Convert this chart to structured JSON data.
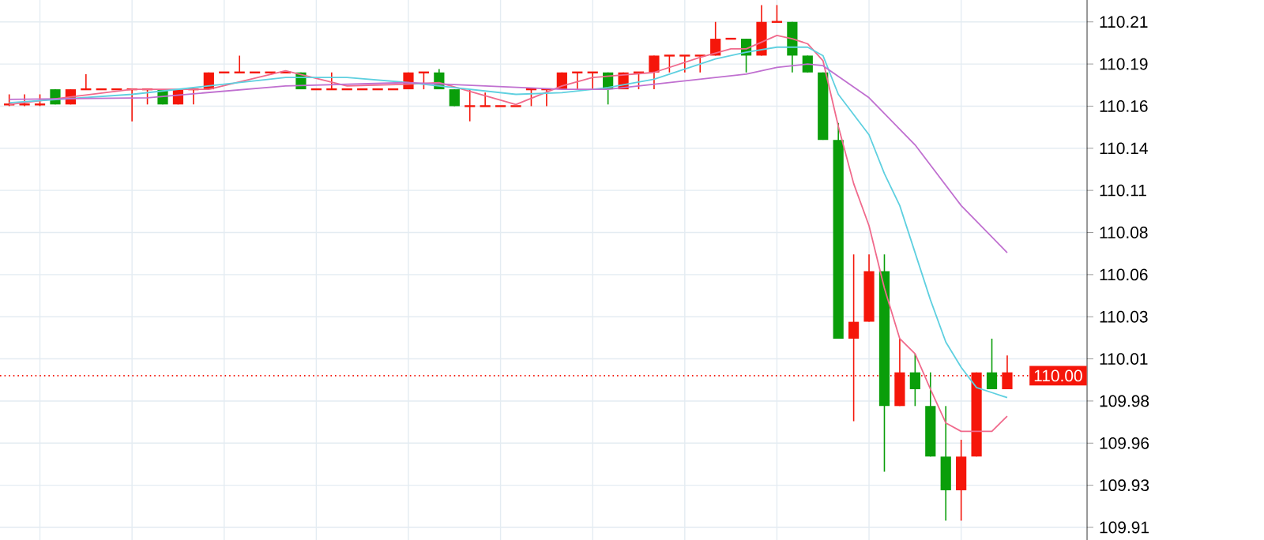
{
  "chart_data": {
    "type": "candlestick",
    "categories": [
      null,
      null,
      null,
      null,
      null,
      null,
      null,
      null,
      null,
      null,
      null,
      null,
      null,
      null,
      null,
      null,
      null,
      null,
      null,
      null,
      null,
      null,
      null,
      null,
      null,
      null,
      null,
      null,
      null,
      null,
      null,
      null,
      null,
      null,
      null,
      null,
      null,
      null,
      null,
      null,
      null,
      null,
      null,
      null,
      null,
      null,
      null,
      null,
      null,
      null,
      null,
      null,
      null,
      null,
      null,
      null,
      null,
      null,
      null,
      null,
      null,
      null,
      null,
      null,
      null,
      null
    ],
    "ohlc": [
      [
        110.161,
        110.167,
        110.16,
        110.161
      ],
      [
        110.161,
        110.167,
        110.16,
        110.161
      ],
      [
        110.161,
        110.167,
        110.16,
        110.161
      ],
      [
        110.17,
        110.17,
        110.161,
        110.161
      ],
      [
        110.161,
        110.17,
        110.161,
        110.17
      ],
      [
        110.17,
        110.179,
        110.17,
        110.17
      ],
      [
        110.17,
        110.17,
        110.17,
        110.17
      ],
      [
        110.17,
        110.17,
        110.17,
        110.17
      ],
      [
        110.17,
        110.17,
        110.151,
        110.17
      ],
      [
        110.17,
        110.17,
        110.161,
        110.17
      ],
      [
        110.17,
        110.17,
        110.161,
        110.161
      ],
      [
        110.161,
        110.17,
        110.161,
        110.17
      ],
      [
        110.17,
        110.17,
        110.161,
        110.17
      ],
      [
        110.17,
        110.18,
        110.17,
        110.18
      ],
      [
        110.18,
        110.18,
        110.18,
        110.18
      ],
      [
        110.18,
        110.19,
        110.18,
        110.18
      ],
      [
        110.18,
        110.18,
        110.18,
        110.18
      ],
      [
        110.18,
        110.18,
        110.18,
        110.18
      ],
      [
        110.18,
        110.18,
        110.18,
        110.18
      ],
      [
        110.18,
        110.18,
        110.17,
        110.17
      ],
      [
        110.17,
        110.17,
        110.17,
        110.17
      ],
      [
        110.17,
        110.18,
        110.17,
        110.17
      ],
      [
        110.17,
        110.17,
        110.17,
        110.17
      ],
      [
        110.17,
        110.17,
        110.17,
        110.17
      ],
      [
        110.17,
        110.17,
        110.17,
        110.17
      ],
      [
        110.17,
        110.17,
        110.17,
        110.17
      ],
      [
        110.17,
        110.18,
        110.17,
        110.18
      ],
      [
        110.18,
        110.18,
        110.17,
        110.18
      ],
      [
        110.18,
        110.182,
        110.17,
        110.17
      ],
      [
        110.17,
        110.17,
        110.16,
        110.16
      ],
      [
        110.16,
        110.17,
        110.151,
        110.16
      ],
      [
        110.16,
        110.168,
        110.16,
        110.16
      ],
      [
        110.16,
        110.16,
        110.16,
        110.16
      ],
      [
        110.16,
        110.16,
        110.16,
        110.16
      ],
      [
        110.17,
        110.17,
        110.16,
        110.17
      ],
      [
        110.17,
        110.17,
        110.16,
        110.17
      ],
      [
        110.17,
        110.18,
        110.17,
        110.18
      ],
      [
        110.18,
        110.18,
        110.17,
        110.18
      ],
      [
        110.18,
        110.18,
        110.17,
        110.18
      ],
      [
        110.18,
        110.18,
        110.161,
        110.17
      ],
      [
        110.17,
        110.18,
        110.17,
        110.18
      ],
      [
        110.18,
        110.18,
        110.17,
        110.18
      ],
      [
        110.18,
        110.19,
        110.17,
        110.19
      ],
      [
        110.19,
        110.19,
        110.18,
        110.19
      ],
      [
        110.19,
        110.19,
        110.18,
        110.19
      ],
      [
        110.19,
        110.19,
        110.18,
        110.19
      ],
      [
        110.19,
        110.21,
        110.19,
        110.2
      ],
      [
        110.2,
        110.2,
        110.2,
        110.2
      ],
      [
        110.2,
        110.2,
        110.18,
        110.19
      ],
      [
        110.19,
        110.22,
        110.19,
        110.21
      ],
      [
        110.21,
        110.22,
        110.21,
        110.21
      ],
      [
        110.21,
        110.21,
        110.18,
        110.19
      ],
      [
        110.19,
        110.19,
        110.18,
        110.18
      ],
      [
        110.18,
        110.18,
        110.14,
        110.14
      ],
      [
        110.14,
        110.15,
        110.022,
        110.022
      ],
      [
        110.022,
        110.072,
        109.973,
        110.032
      ],
      [
        110.032,
        110.072,
        110.032,
        110.062
      ],
      [
        110.062,
        110.072,
        109.943,
        109.982
      ],
      [
        109.982,
        110.022,
        109.982,
        110.002
      ],
      [
        110.002,
        110.013,
        109.982,
        109.992
      ],
      [
        109.982,
        110.002,
        109.952,
        109.952
      ],
      [
        109.952,
        109.982,
        109.914,
        109.932
      ],
      [
        109.932,
        109.962,
        109.914,
        109.952
      ],
      [
        109.952,
        110.002,
        109.952,
        110.002
      ],
      [
        110.002,
        110.022,
        109.992,
        109.992
      ],
      [
        109.992,
        110.012,
        109.992,
        110.002
      ]
    ],
    "colors": [
      "#f5160a",
      "#f5160a",
      "#f5160a",
      "#0a9e0a",
      "#f5160a",
      "#f5160a",
      "#f5160a",
      "#f5160a",
      "#f5160a",
      "#f5160a",
      "#0a9e0a",
      "#f5160a",
      "#f5160a",
      "#f5160a",
      "#f5160a",
      "#f5160a",
      "#f5160a",
      "#f5160a",
      "#f5160a",
      "#0a9e0a",
      "#f5160a",
      "#f5160a",
      "#f5160a",
      "#f5160a",
      "#f5160a",
      "#f5160a",
      "#f5160a",
      "#f5160a",
      "#0a9e0a",
      "#0a9e0a",
      "#f5160a",
      "#f5160a",
      "#f5160a",
      "#f5160a",
      "#f5160a",
      "#f5160a",
      "#f5160a",
      "#f5160a",
      "#f5160a",
      "#0a9e0a",
      "#f5160a",
      "#f5160a",
      "#f5160a",
      "#f5160a",
      "#f5160a",
      "#f5160a",
      "#f5160a",
      "#f5160a",
      "#0a9e0a",
      "#f5160a",
      "#f5160a",
      "#0a9e0a",
      "#0a9e0a",
      "#0a9e0a",
      "#0a9e0a",
      "#f5160a",
      "#f5160a",
      "#0a9e0a",
      "#f5160a",
      "#0a9e0a",
      "#0a9e0a",
      "#0a9e0a",
      "#f5160a",
      "#f5160a",
      "#0a9e0a",
      "#f5160a"
    ],
    "series": [
      {
        "type": "line",
        "color": "#f06a8c",
        "values": [
          110.161,
          null,
          null,
          null,
          null,
          null,
          null,
          null,
          110.17,
          null,
          null,
          null,
          null,
          110.17,
          null,
          null,
          null,
          null,
          110.181,
          null,
          null,
          null,
          110.172,
          null,
          null,
          null,
          110.173,
          null,
          110.174,
          null,
          null,
          null,
          null,
          110.161,
          null,
          null,
          110.172,
          null,
          110.177,
          null,
          null,
          null,
          110.18,
          null,
          null,
          110.189,
          null,
          110.194,
          110.194,
          null,
          110.202,
          110.2,
          110.197,
          110.187,
          110.148,
          110.114,
          110.089,
          110.052,
          110.022,
          110.013,
          109.992,
          109.972,
          109.967,
          109.967,
          109.967,
          109.976
        ]
      },
      {
        "type": "line",
        "color": "#5fd0e0",
        "values": [
          110.162,
          null,
          null,
          null,
          null,
          null,
          null,
          null,
          110.167,
          null,
          null,
          null,
          null,
          null,
          null,
          null,
          null,
          null,
          110.177,
          null,
          null,
          null,
          110.177,
          null,
          null,
          null,
          110.174,
          null,
          null,
          null,
          null,
          null,
          null,
          110.167,
          null,
          null,
          110.168,
          null,
          null,
          110.171,
          null,
          null,
          110.176,
          null,
          null,
          null,
          110.188,
          null,
          110.192,
          null,
          110.195,
          null,
          110.195,
          110.19,
          110.167,
          null,
          110.143,
          110.12,
          110.101,
          110.073,
          110.045,
          110.02,
          110.005,
          109.993,
          109.99,
          109.987
        ]
      },
      {
        "type": "line",
        "color": "#c070d0",
        "values": [
          110.164,
          null,
          null,
          null,
          null,
          null,
          null,
          null,
          null,
          110.165,
          null,
          null,
          null,
          null,
          null,
          null,
          null,
          null,
          110.172,
          null,
          null,
          null,
          null,
          null,
          null,
          null,
          110.174,
          null,
          null,
          null,
          null,
          null,
          null,
          null,
          null,
          null,
          110.17,
          null,
          null,
          110.17,
          null,
          null,
          null,
          null,
          null,
          null,
          null,
          null,
          110.179,
          null,
          110.183,
          null,
          110.185,
          110.184,
          null,
          null,
          110.165,
          null,
          null,
          110.137,
          null,
          null,
          110.101,
          null,
          null,
          110.073
        ]
      }
    ],
    "ylim": [
      109.9025,
      110.223
    ],
    "yticks": [
      {
        "value": 109.91,
        "label": "109.91"
      },
      {
        "value": 109.935,
        "label": "109.93"
      },
      {
        "value": 109.96,
        "label": "109.96"
      },
      {
        "value": 109.985,
        "label": "109.98"
      },
      {
        "value": 110.01,
        "label": "110.01"
      },
      {
        "value": 110.035,
        "label": "110.03"
      },
      {
        "value": 110.06,
        "label": "110.06"
      },
      {
        "value": 110.085,
        "label": "110.08"
      },
      {
        "value": 110.11,
        "label": "110.11"
      },
      {
        "value": 110.135,
        "label": "110.14"
      },
      {
        "value": 110.16,
        "label": "110.16"
      },
      {
        "value": 110.185,
        "label": "110.19"
      },
      {
        "value": 110.21,
        "label": "110.21"
      }
    ],
    "ref_lines": [
      {
        "axis": "y",
        "value": 110.0,
        "label": "110.00",
        "color": "#f5160a",
        "line_style": "dotted"
      }
    ],
    "grid": true
  }
}
